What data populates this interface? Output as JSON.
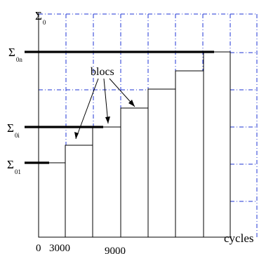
{
  "labels": {
    "sigma0": {
      "main": "Σ",
      "sub": "0"
    },
    "sigma0n": {
      "main": "Σ",
      "sub": "0n"
    },
    "sigma0i": {
      "main": "Σ",
      "sub": "0i"
    },
    "sigma01": {
      "main": "Σ",
      "sub": "01"
    },
    "blocs": "blocs",
    "cycles": "cycles",
    "tick_0": "0",
    "tick_3000": "3000",
    "tick_9000": "9000"
  },
  "colors": {
    "grid": "#1f35d6",
    "lines": "#000000",
    "background": "#ffffff"
  },
  "structure": {
    "block_count": 7,
    "block_levels": [
      0,
      1,
      2,
      3,
      4,
      5,
      6
    ]
  }
}
